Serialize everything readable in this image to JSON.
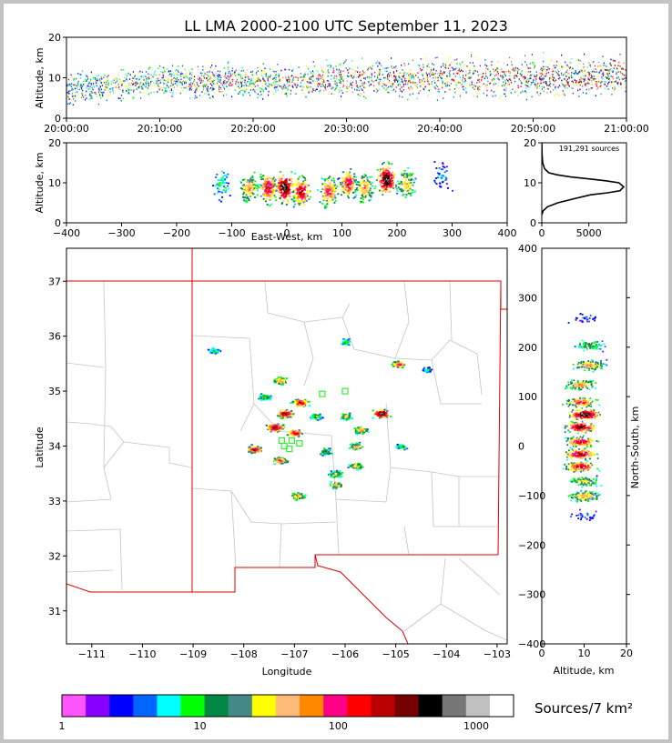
{
  "chart_data": [
    {
      "type": "heatmap",
      "panel": "time-altitude",
      "title": "LL LMA 2000-2100 UTC September 11, 2023",
      "xlabel": "",
      "ylabel": "Altitude, km",
      "xticks": [
        "20:00:00",
        "20:10:00",
        "20:20:00",
        "20:30:00",
        "20:40:00",
        "20:50:00",
        "21:00:00"
      ],
      "yticks": [
        "0",
        "10",
        "20"
      ],
      "ylim": [
        0,
        20
      ],
      "band_center_km": [
        7,
        9,
        9,
        9.5,
        10,
        10,
        10.5
      ],
      "band_halfwidth_km": [
        4,
        4,
        4,
        4.5,
        5,
        5,
        5
      ]
    },
    {
      "type": "heatmap",
      "panel": "east-west-altitude",
      "xlabel": "East-West, km",
      "ylabel": "Altitude, km",
      "xlim": [
        -400,
        400
      ],
      "ylim": [
        0,
        20
      ],
      "xticks": [
        "−400",
        "−300",
        "−200",
        "−100",
        "0",
        "100",
        "200",
        "300",
        "400"
      ],
      "yticks": [
        "0",
        "10",
        "20"
      ],
      "cells": [
        {
          "x": -120,
          "z": 10,
          "intensity": 0.25
        },
        {
          "x": -70,
          "z": 9,
          "intensity": 0.6
        },
        {
          "x": -35,
          "z": 9,
          "intensity": 0.8
        },
        {
          "x": -5,
          "z": 9,
          "intensity": 1.0
        },
        {
          "x": 25,
          "z": 8,
          "intensity": 0.8
        },
        {
          "x": 75,
          "z": 8,
          "intensity": 0.7
        },
        {
          "x": 110,
          "z": 10,
          "intensity": 0.75
        },
        {
          "x": 140,
          "z": 9,
          "intensity": 0.6
        },
        {
          "x": 180,
          "z": 11,
          "intensity": 1.0
        },
        {
          "x": 215,
          "z": 10,
          "intensity": 0.55
        },
        {
          "x": 280,
          "z": 12,
          "intensity": 0.15
        }
      ]
    },
    {
      "type": "line",
      "panel": "altitude-histogram",
      "annotation": "191,291 sources",
      "xlim": [
        0,
        9000
      ],
      "ylim": [
        0,
        20
      ],
      "xticks": [
        "0",
        "5000"
      ],
      "yticks": [
        "0",
        "10",
        "20"
      ],
      "x": [
        0,
        150,
        600,
        1700,
        3400,
        5200,
        7000,
        8300,
        8700,
        8200,
        6800,
        4900,
        3000,
        1600,
        750,
        300,
        100,
        30,
        0
      ],
      "y": [
        2,
        3,
        4,
        5,
        6,
        7,
        7.5,
        8,
        9,
        10,
        10.5,
        11,
        11.5,
        12,
        12.5,
        13.5,
        15,
        17,
        20
      ]
    },
    {
      "type": "scatter",
      "panel": "plan-view",
      "xlabel": "Longitude",
      "ylabel": "Latitude",
      "xlim": [
        -111.5,
        -102.8
      ],
      "ylim": [
        30.4,
        37.6
      ],
      "xticks": [
        "−111",
        "−110",
        "−109",
        "−108",
        "−107",
        "−106",
        "−105",
        "−104",
        "−103"
      ],
      "yticks": [
        "31",
        "32",
        "33",
        "34",
        "35",
        "36",
        "37"
      ],
      "stations": [
        [
          -107.2,
          34.0
        ],
        [
          -107.05,
          34.1
        ],
        [
          -106.9,
          34.05
        ],
        [
          -107.1,
          33.95
        ],
        [
          -106.45,
          34.95
        ],
        [
          -106.0,
          35.0
        ],
        [
          -107.25,
          34.1
        ]
      ],
      "clusters": [
        {
          "lon": -107.3,
          "lat": 35.2,
          "intensity": 0.6
        },
        {
          "lon": -106.9,
          "lat": 34.8,
          "intensity": 0.8
        },
        {
          "lon": -107.2,
          "lat": 34.6,
          "intensity": 0.9
        },
        {
          "lon": -107.4,
          "lat": 34.35,
          "intensity": 0.9
        },
        {
          "lon": -107.0,
          "lat": 34.25,
          "intensity": 0.8
        },
        {
          "lon": -107.8,
          "lat": 33.95,
          "intensity": 0.8
        },
        {
          "lon": -107.3,
          "lat": 33.75,
          "intensity": 0.7
        },
        {
          "lon": -105.3,
          "lat": 34.6,
          "intensity": 1.0
        },
        {
          "lon": -105.7,
          "lat": 34.3,
          "intensity": 0.6
        },
        {
          "lon": -106.0,
          "lat": 34.55,
          "intensity": 0.5
        },
        {
          "lon": -105.8,
          "lat": 34.0,
          "intensity": 0.55
        },
        {
          "lon": -106.4,
          "lat": 33.9,
          "intensity": 0.45
        },
        {
          "lon": -105.8,
          "lat": 33.65,
          "intensity": 0.55
        },
        {
          "lon": -106.2,
          "lat": 33.5,
          "intensity": 0.5
        },
        {
          "lon": -106.2,
          "lat": 33.3,
          "intensity": 0.55
        },
        {
          "lon": -106.95,
          "lat": 33.1,
          "intensity": 0.6
        },
        {
          "lon": -104.95,
          "lat": 35.5,
          "intensity": 0.7
        },
        {
          "lon": -107.6,
          "lat": 34.9,
          "intensity": 0.4
        },
        {
          "lon": -108.6,
          "lat": 35.75,
          "intensity": 0.3
        },
        {
          "lon": -106.0,
          "lat": 35.9,
          "intensity": 0.3
        },
        {
          "lon": -104.4,
          "lat": 35.4,
          "intensity": 0.25
        },
        {
          "lon": -104.9,
          "lat": 34.0,
          "intensity": 0.3
        },
        {
          "lon": -106.6,
          "lat": 34.55,
          "intensity": 0.4
        }
      ]
    },
    {
      "type": "heatmap",
      "panel": "altitude-north-south",
      "xlabel": "Altitude, km",
      "ylabel": "North-South, km",
      "xlim": [
        0,
        20
      ],
      "ylim": [
        -400,
        400
      ],
      "xticks": [
        "0",
        "10",
        "20"
      ],
      "yticks": [
        "400",
        "300",
        "200",
        "100",
        "0",
        "−100",
        "−200",
        "−300",
        "−400"
      ],
      "cells": [
        {
          "ns": 260,
          "alt": 10,
          "intensity": 0.1
        },
        {
          "ns": 205,
          "alt": 11,
          "intensity": 0.4
        },
        {
          "ns": 165,
          "alt": 11,
          "intensity": 0.6
        },
        {
          "ns": 125,
          "alt": 9,
          "intensity": 0.6
        },
        {
          "ns": 90,
          "alt": 9,
          "intensity": 0.7
        },
        {
          "ns": 65,
          "alt": 10,
          "intensity": 1.0
        },
        {
          "ns": 40,
          "alt": 9,
          "intensity": 0.9
        },
        {
          "ns": 10,
          "alt": 9,
          "intensity": 0.8
        },
        {
          "ns": -15,
          "alt": 9,
          "intensity": 0.85
        },
        {
          "ns": -40,
          "alt": 9,
          "intensity": 0.8
        },
        {
          "ns": -70,
          "alt": 10,
          "intensity": 0.5
        },
        {
          "ns": -100,
          "alt": 10,
          "intensity": 0.6
        },
        {
          "ns": -140,
          "alt": 10,
          "intensity": 0.1
        }
      ]
    }
  ],
  "colorbar": {
    "label": "Sources/7 km²",
    "ticks": [
      "1",
      "10",
      "100",
      "1000"
    ],
    "colors": [
      "#ff55ff",
      "#8800ff",
      "#0000ff",
      "#0066ff",
      "#00ffff",
      "#00ff00",
      "#008844",
      "#448888",
      "#ffff00",
      "#ffbb77",
      "#ff8800",
      "#ff0088",
      "#ff0000",
      "#bb0000",
      "#770000",
      "#000000",
      "#777777",
      "#c0c0c0",
      "#ffffff"
    ]
  }
}
